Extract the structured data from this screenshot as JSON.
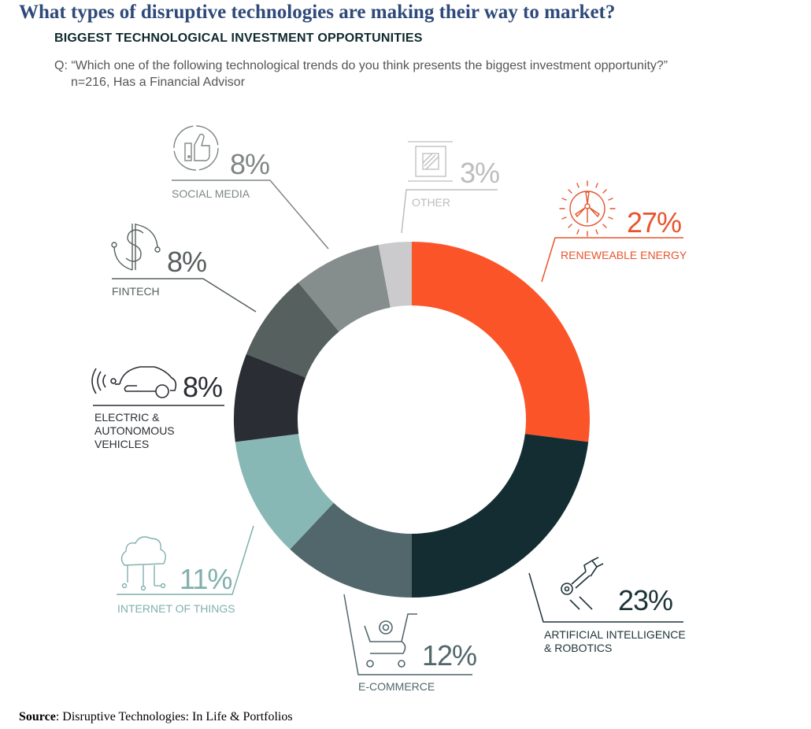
{
  "header": {
    "title": "What types of disruptive technologies are making their way to market?",
    "subtitle": "BIGGEST TECHNOLOGICAL INVESTMENT OPPORTUNITIES",
    "question_line1": "Q: “Which one of the following technological trends do you think presents the biggest investment opportunity?”",
    "question_line2": "n=216, Has a Financial Advisor"
  },
  "footer": {
    "source_label": "Source",
    "source_text": ": Disruptive Technologies: In Life & Portfolios"
  },
  "segments": [
    {
      "label": "RENEWEABLE ENERGY",
      "pct": "27%",
      "color": "#fb5428",
      "text_color": "#e8542e",
      "icon": "wind-turbine-sun-icon"
    },
    {
      "label": "ARTIFICIAL INTELLIGENCE & ROBOTICS",
      "label_line1": "ARTIFICIAL INTELLIGENCE",
      "label_line2": "& ROBOTICS",
      "pct": "23%",
      "color": "#132d33",
      "text_color": "#1d3338",
      "icon": "robotic-arm-icon"
    },
    {
      "label": "E-COMMERCE",
      "pct": "12%",
      "color": "#52676c",
      "text_color": "#52676c",
      "icon": "shopping-cart-at-icon"
    },
    {
      "label": "INTERNET OF THINGS",
      "pct": "11%",
      "color": "#88b8b5",
      "text_color": "#7fb0ad",
      "icon": "cloud-network-icon"
    },
    {
      "label": "ELECTRIC & AUTONOMOUS VEHICLES",
      "label_line1": "ELECTRIC &",
      "label_line2": "AUTONOMOUS",
      "label_line3": "VEHICLES",
      "pct": "8%",
      "color": "#2a2d33",
      "text_color": "#2a2d33",
      "icon": "car-signal-icon"
    },
    {
      "label": "FINTECH",
      "pct": "8%",
      "color": "#56605f",
      "text_color": "#56605f",
      "icon": "dollar-circuit-icon"
    },
    {
      "label": "SOCIAL MEDIA",
      "pct": "8%",
      "color": "#858e8c",
      "text_color": "#7f8685",
      "icon": "thumbs-up-phone-icon"
    },
    {
      "label": "OTHER",
      "pct": "3%",
      "color": "#cbcbcd",
      "text_color": "#bdbdbd",
      "icon": "chip-icon"
    }
  ],
  "chart_data": {
    "type": "pie",
    "subtype": "donut",
    "title": "BIGGEST TECHNOLOGICAL INVESTMENT OPPORTUNITIES",
    "subtitle": "Q: “Which one of the following technological trends do you think presents the biggest investment opportunity?” n=216, Has a Financial Advisor",
    "categories": [
      "Renewable Energy",
      "Artificial Intelligence & Robotics",
      "E-Commerce",
      "Internet of Things",
      "Electric & Autonomous Vehicles",
      "Fintech",
      "Social Media",
      "Other"
    ],
    "values": [
      27,
      23,
      12,
      11,
      8,
      8,
      8,
      3
    ],
    "unit": "%",
    "colors": [
      "#fb5428",
      "#132d33",
      "#52676c",
      "#88b8b5",
      "#2a2d33",
      "#56605f",
      "#858e8c",
      "#cbcbcd"
    ],
    "start_angle": "12 o'clock, clockwise",
    "legend": "callout labels around donut"
  }
}
